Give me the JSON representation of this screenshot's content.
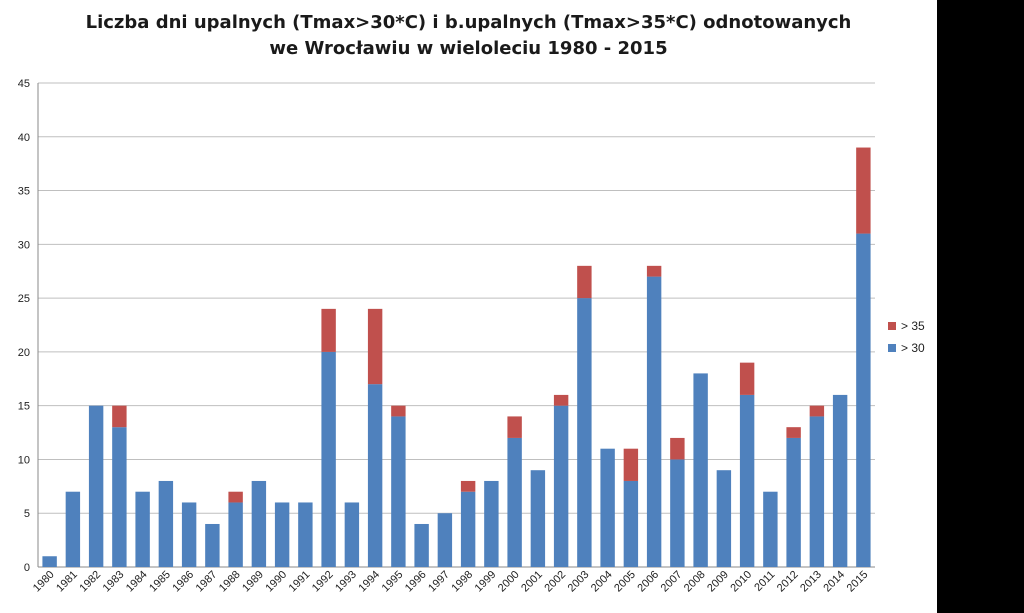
{
  "chart_data": {
    "type": "bar",
    "stacked": true,
    "title_lines": [
      "Liczba dni upalnych (Tmax>30*C) i b.upalnych (Tmax>35*C) odnotowanych",
      "we Wrocławiu w wieloleciu 1980 - 2015"
    ],
    "categories": [
      "1980",
      "1981",
      "1982",
      "1983",
      "1984",
      "1985",
      "1986",
      "1987",
      "1988",
      "1989",
      "1990",
      "1991",
      "1992",
      "1993",
      "1994",
      "1995",
      "1996",
      "1997",
      "1998",
      "1999",
      "2000",
      "2001",
      "2002",
      "2003",
      "2004",
      "2005",
      "2006",
      "2007",
      "2008",
      "2009",
      "2010",
      "2011",
      "2012",
      "2013",
      "2014",
      "2015"
    ],
    "series": [
      {
        "name": "> 30",
        "color": "#4f81bd",
        "values": [
          1,
          7,
          15,
          13,
          7,
          8,
          6,
          4,
          6,
          8,
          6,
          6,
          20,
          6,
          17,
          14,
          4,
          5,
          7,
          8,
          12,
          9,
          15,
          25,
          11,
          8,
          27,
          10,
          18,
          9,
          16,
          7,
          12,
          14,
          16,
          31
        ]
      },
      {
        "name": "> 35",
        "color": "#c0504d",
        "values": [
          0,
          0,
          0,
          2,
          0,
          0,
          0,
          0,
          1,
          0,
          0,
          0,
          4,
          0,
          7,
          1,
          0,
          0,
          1,
          0,
          2,
          0,
          1,
          3,
          0,
          3,
          1,
          2,
          0,
          0,
          3,
          0,
          1,
          1,
          0,
          8
        ]
      }
    ],
    "y_ticks": [
      "0",
      "5",
      "10",
      "15",
      "20",
      "25",
      "30",
      "35",
      "40",
      "45"
    ],
    "ylim": [
      0,
      45
    ],
    "grid": true,
    "legend_position": "right",
    "legend_order": [
      "> 35",
      "> 30"
    ]
  }
}
